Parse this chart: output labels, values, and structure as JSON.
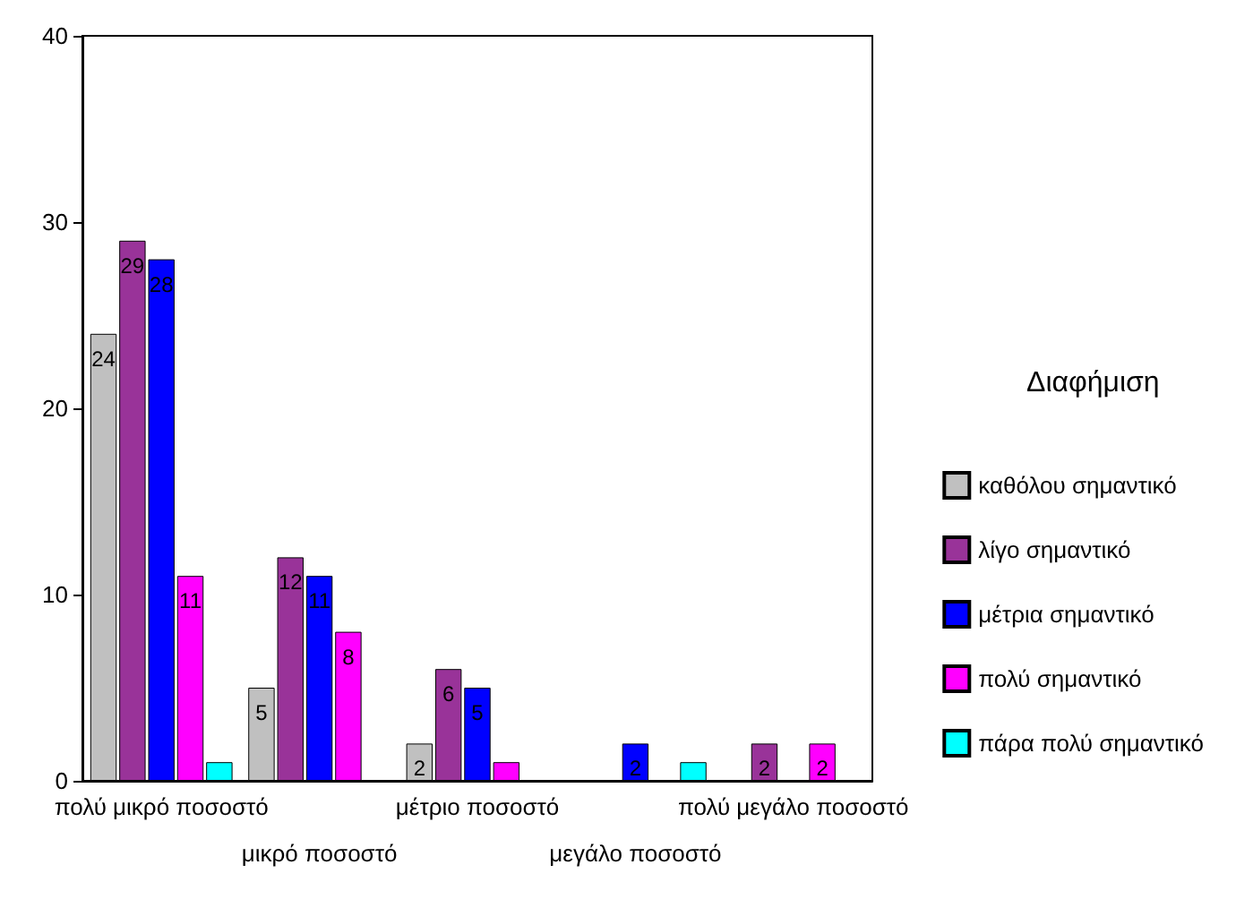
{
  "chart_data": {
    "type": "bar",
    "legend_title": "Διαφήμιση",
    "categories": [
      "πολύ μικρό ποσοστό",
      "μικρό ποσοστό",
      "μέτριο ποσοστό",
      "μεγάλο ποσοστό",
      "πολύ μεγάλο ποσοστό"
    ],
    "series": [
      {
        "name": "καθόλου σημαντικό",
        "color": "#c0c0c0",
        "values": [
          24,
          5,
          2,
          null,
          null
        ],
        "value_labels": [
          "24",
          "5",
          "2",
          null,
          null
        ]
      },
      {
        "name": "λίγο σημαντικό",
        "color": "#993399",
        "values": [
          29,
          12,
          6,
          null,
          2
        ],
        "value_labels": [
          "29",
          "12",
          "6",
          null,
          "2"
        ]
      },
      {
        "name": "μέτρια σημαντικό",
        "color": "#0000ff",
        "values": [
          28,
          11,
          5,
          2,
          null
        ],
        "value_labels": [
          "28",
          "11",
          "5",
          "2",
          null
        ]
      },
      {
        "name": "πολύ σημαντικό",
        "color": "#ff00ff",
        "values": [
          11,
          8,
          1,
          null,
          2
        ],
        "value_labels": [
          "11",
          "8",
          null,
          null,
          "2"
        ]
      },
      {
        "name": "πάρα πολύ σημαντικό",
        "color": "#00ffff",
        "values": [
          1,
          null,
          null,
          1,
          null
        ],
        "value_labels": [
          null,
          null,
          null,
          null,
          null
        ]
      }
    ],
    "ylim": [
      0,
      40
    ],
    "yticks": [
      0,
      10,
      20,
      30,
      40
    ],
    "grid": false,
    "legend": "right"
  }
}
